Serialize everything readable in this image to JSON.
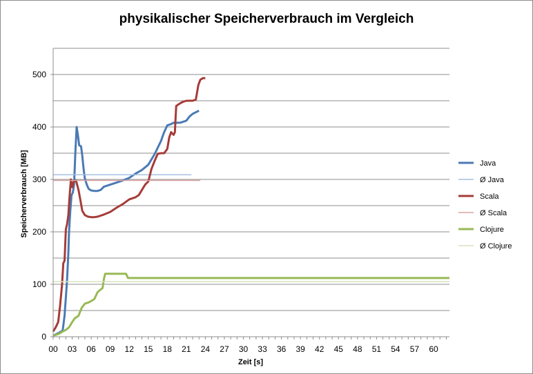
{
  "chart_data": {
    "type": "line",
    "title": "physikalischer Speicherverbrauch im Vergleich",
    "xlabel": "Zeit [s]",
    "ylabel": "Speicherverbrauch  [MB]",
    "xlim": [
      0,
      62.5
    ],
    "ylim": [
      0,
      550
    ],
    "y_ticks": [
      0,
      100,
      200,
      300,
      400,
      500
    ],
    "x_tick_labels": [
      "00",
      "03",
      "06",
      "09",
      "12",
      "15",
      "18",
      "21",
      "24",
      "27",
      "30",
      "33",
      "36",
      "39",
      "42",
      "45",
      "48",
      "51",
      "54",
      "57",
      "60"
    ],
    "grid": "horizontal",
    "legend_position": "right",
    "series": [
      {
        "name": "Java",
        "color": "#4a7ab4",
        "width": 3,
        "points": [
          [
            0,
            2
          ],
          [
            0.5,
            5
          ],
          [
            1,
            8
          ],
          [
            1.5,
            12
          ],
          [
            1.8,
            40
          ],
          [
            2,
            75
          ],
          [
            2.2,
            110
          ],
          [
            2.4,
            160
          ],
          [
            2.5,
            200
          ],
          [
            2.7,
            240
          ],
          [
            2.9,
            270
          ],
          [
            3.1,
            275
          ],
          [
            3.3,
            290
          ],
          [
            3.5,
            350
          ],
          [
            3.7,
            400
          ],
          [
            3.9,
            385
          ],
          [
            4.1,
            365
          ],
          [
            4.4,
            363
          ],
          [
            4.6,
            345
          ],
          [
            4.8,
            320
          ],
          [
            5.0,
            302
          ],
          [
            5.3,
            290
          ],
          [
            5.6,
            282
          ],
          [
            6.0,
            279
          ],
          [
            6.5,
            278
          ],
          [
            7.0,
            278
          ],
          [
            7.5,
            280
          ],
          [
            8.0,
            286
          ],
          [
            9.0,
            290
          ],
          [
            10.0,
            294
          ],
          [
            11.0,
            298
          ],
          [
            12.0,
            303
          ],
          [
            13.0,
            311
          ],
          [
            14.0,
            318
          ],
          [
            15.0,
            328
          ],
          [
            16.0,
            348
          ],
          [
            17.0,
            373
          ],
          [
            17.5,
            390
          ],
          [
            18.0,
            403
          ],
          [
            18.5,
            405
          ],
          [
            19.0,
            408
          ],
          [
            20.0,
            408
          ],
          [
            21.0,
            412
          ],
          [
            21.5,
            420
          ],
          [
            22.0,
            425
          ],
          [
            22.5,
            428
          ],
          [
            23.0,
            431
          ]
        ]
      },
      {
        "name": "Ø Java",
        "color": "#a4bfe0",
        "width": 1.5,
        "points": [
          [
            0,
            309
          ],
          [
            21.8,
            309
          ]
        ]
      },
      {
        "name": "Scala",
        "color": "#a53b38",
        "width": 3,
        "points": [
          [
            0,
            10
          ],
          [
            0.4,
            18
          ],
          [
            0.8,
            28
          ],
          [
            1.1,
            60
          ],
          [
            1.4,
            100
          ],
          [
            1.6,
            140
          ],
          [
            1.8,
            145
          ],
          [
            2.0,
            205
          ],
          [
            2.2,
            215
          ],
          [
            2.4,
            232
          ],
          [
            2.6,
            270
          ],
          [
            2.8,
            300
          ],
          [
            3.0,
            285
          ],
          [
            3.2,
            295
          ],
          [
            3.6,
            298
          ],
          [
            4.0,
            280
          ],
          [
            4.3,
            260
          ],
          [
            4.6,
            240
          ],
          [
            5.0,
            232
          ],
          [
            5.5,
            229
          ],
          [
            6.0,
            228
          ],
          [
            6.5,
            228
          ],
          [
            7.0,
            229
          ],
          [
            8.0,
            233
          ],
          [
            9.0,
            238
          ],
          [
            10.0,
            246
          ],
          [
            11.0,
            253
          ],
          [
            12.0,
            262
          ],
          [
            13.0,
            266
          ],
          [
            13.5,
            270
          ],
          [
            14.0,
            280
          ],
          [
            14.5,
            290
          ],
          [
            15.0,
            296
          ],
          [
            15.5,
            320
          ],
          [
            16.0,
            335
          ],
          [
            16.5,
            349
          ],
          [
            17.0,
            350
          ],
          [
            17.5,
            350
          ],
          [
            18.0,
            358
          ],
          [
            18.3,
            380
          ],
          [
            18.6,
            390
          ],
          [
            19.0,
            385
          ],
          [
            19.2,
            390
          ],
          [
            19.4,
            440
          ],
          [
            20.0,
            445
          ],
          [
            20.5,
            448
          ],
          [
            21.0,
            450
          ],
          [
            21.5,
            450
          ],
          [
            22.0,
            450
          ],
          [
            22.5,
            452
          ],
          [
            22.9,
            480
          ],
          [
            23.2,
            490
          ],
          [
            23.6,
            493
          ],
          [
            24.0,
            493
          ]
        ]
      },
      {
        "name": "Ø Scala",
        "color": "#dba3a2",
        "width": 1.5,
        "points": [
          [
            0,
            298
          ],
          [
            23.2,
            298
          ]
        ]
      },
      {
        "name": "Clojure",
        "color": "#98b955",
        "width": 3,
        "points": [
          [
            0,
            2
          ],
          [
            0.5,
            4
          ],
          [
            1.0,
            6
          ],
          [
            1.5,
            10
          ],
          [
            2.0,
            13
          ],
          [
            2.5,
            18
          ],
          [
            3.0,
            28
          ],
          [
            3.4,
            35
          ],
          [
            4.0,
            40
          ],
          [
            4.5,
            55
          ],
          [
            5.0,
            63
          ],
          [
            5.5,
            65
          ],
          [
            6.0,
            68
          ],
          [
            6.5,
            72
          ],
          [
            7.0,
            85
          ],
          [
            7.5,
            90
          ],
          [
            7.8,
            93
          ],
          [
            8.0,
            110
          ],
          [
            8.2,
            120
          ],
          [
            8.5,
            120
          ],
          [
            9.0,
            120
          ],
          [
            10.0,
            120
          ],
          [
            11.0,
            120
          ],
          [
            11.5,
            120
          ],
          [
            11.8,
            112
          ],
          [
            12.5,
            112
          ],
          [
            62.5,
            112
          ]
        ]
      },
      {
        "name": "Ø Clojure",
        "color": "#d6e3bc",
        "width": 1.5,
        "points": [
          [
            0,
            105
          ],
          [
            62.5,
            105
          ]
        ]
      }
    ]
  }
}
